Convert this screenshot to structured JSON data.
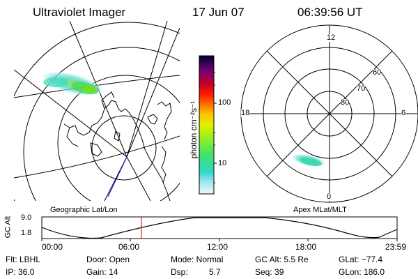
{
  "header": {
    "instrument": "Ultraviolet Imager",
    "date": "17 Jun 07",
    "time": "06:39:56 UT"
  },
  "panels": {
    "geographic_label": "Geographic Lat/Lon",
    "apex_label": "Apex MLat/MLT"
  },
  "colorbar": {
    "unit_label": "photon cm⁻²s⁻¹",
    "tick_labels": [
      "100",
      "10"
    ],
    "colors": [
      "#000030",
      "#2a0050",
      "#5a0080",
      "#90006a",
      "#c0002a",
      "#ff0000",
      "#ff6a00",
      "#ffaa00",
      "#ffe000",
      "#e0ff00",
      "#a0ff00",
      "#50f040",
      "#20e0a0",
      "#40d8d8",
      "#a0e8f0",
      "#e8f4f8"
    ]
  },
  "polar_plot": {
    "mlt_labels": {
      "top": "12",
      "right": "6",
      "bottom": "0",
      "left": "18"
    },
    "mlat_labels": [
      "60",
      "70",
      "80"
    ]
  },
  "altitude_plot": {
    "y_axis_label": "GC Alt",
    "y_ticks": [
      "9.0",
      "1.8"
    ],
    "x_ticks": [
      "00:00",
      "06:00",
      "12:00",
      "18:00",
      "23:59"
    ],
    "current_time_marker": "06:39:56"
  },
  "status": {
    "filter": "Flt: LBHL",
    "ip": "IP: 36.0",
    "door": "Door: Open",
    "gain": "Gain: 14",
    "mode": "Mode: Normal",
    "dsp_label": "Dsp:",
    "dsp_value": "5.7",
    "gc_alt": "GC Alt: 5.5 Re",
    "seq": "Seq: 39",
    "glat": "GLat: −77.4",
    "glon": "GLon: 186.0"
  }
}
